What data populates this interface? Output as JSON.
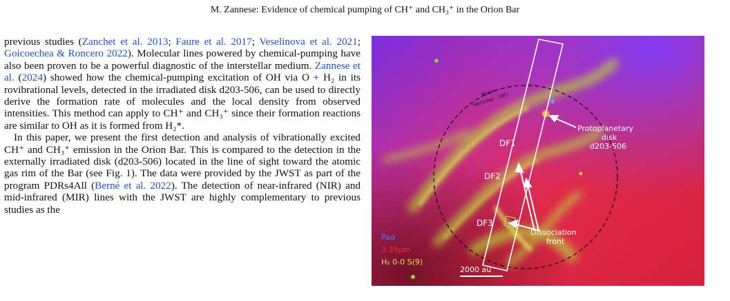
{
  "header": {
    "title": "M. Zannese: Evidence of chemical pumping of CH⁺ and CH₃⁺ in the Orion Bar"
  },
  "body": {
    "p1": {
      "t1": "previous studies (",
      "c1": "Zanchet et al. 2013",
      "s1": "; ",
      "c2": "Faure et al. 2017",
      "s2": "; ",
      "c3": "Veselinova et al. 2021",
      "s3": "; ",
      "c4": "Goicoechea & Roncero 2022",
      "t2": "). Molecular lines powered by chemical-pumping have also been proven to be a powerful diagnostic of the interstellar medium. ",
      "c5": "Zannese et al.",
      "t3": " (",
      "c6": "2024",
      "t4": ") showed how the chemical-pumping excitation of OH via O + H₂ in its rovibrational levels, detected in the irradiated disk d203-506, can be used to directly derive the formation rate of molecules and the local density from observed intensities. This method can apply to CH⁺ and CH₃⁺ since their formation reactions are similar to OH as it is formed from H₂*."
    },
    "p2": {
      "t1": "In this paper, we present the first detection and analysis of vibrationally excited CH⁺ and CH₃⁺ emission in the Orion Bar. This is compared to the detection in the externally irradiated disk (d203-506) located in the line of sight toward the atomic gas rim of the Bar (see Fig. 1). The data were provided by the JWST as part of the program PDRs4All (",
      "c1": "Berné et al. 2022",
      "t2": "). The detection of near-infrared (NIR) and mid-infrared (MIR) lines with the JWST are highly complementary to previous studies as the"
    }
  },
  "figure": {
    "beam_label_1": "Beam",
    "beam_label_2": "Herschel – HIFI",
    "disk_label_1": "Protoplanetary",
    "disk_label_2": "disk",
    "disk_label_3": "d203-506",
    "df1": "DF1",
    "df2": "DF2",
    "df3": "DF3",
    "dissoc_1": "Dissociation",
    "dissoc_2": "front",
    "legend_pa": "Paα",
    "legend_33": "3.35μm",
    "legend_h2": "H₂ 0-0 S(9)",
    "scale": "2000 au",
    "colors": {
      "pa": "#4a78ff",
      "c335": "#ff2a2a",
      "h2": "#d6e64a"
    }
  }
}
